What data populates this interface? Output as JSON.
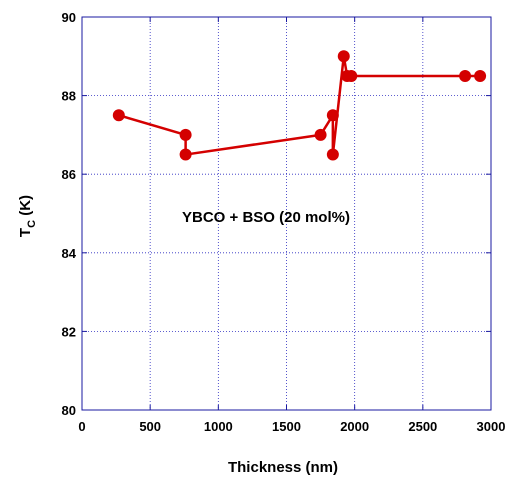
{
  "chart_data": {
    "type": "line",
    "title": "",
    "annotation": "YBCO + BSO (20 mol%)",
    "xlabel": "Thickness (nm)",
    "ylabel_main": "T",
    "ylabel_sub": "C",
    "ylabel_unit": " (K)",
    "xlim": [
      0,
      3000
    ],
    "ylim": [
      80,
      90
    ],
    "xticks": [
      0,
      500,
      1000,
      1500,
      2000,
      2500,
      3000
    ],
    "yticks": [
      80,
      82,
      84,
      86,
      88,
      90
    ],
    "grid": true,
    "series": [
      {
        "color": "#d40000",
        "x": [
          270,
          760,
          760,
          1750,
          1840,
          1840,
          1920,
          1945,
          1975,
          2810,
          2920
        ],
        "y": [
          87.5,
          87.0,
          86.5,
          87.0,
          87.5,
          86.5,
          89.0,
          88.5,
          88.5,
          88.5,
          88.5
        ]
      }
    ]
  }
}
